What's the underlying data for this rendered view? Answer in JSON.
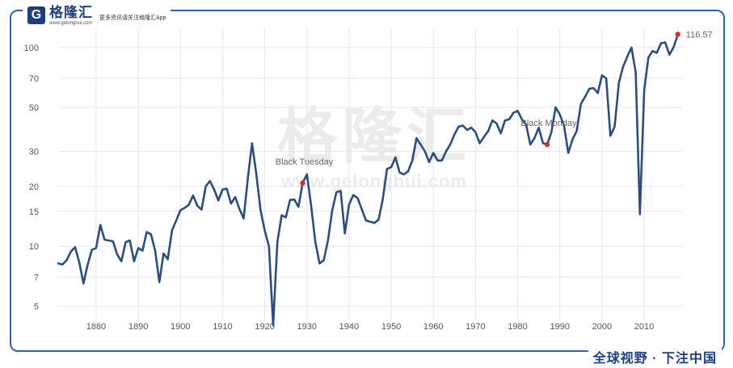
{
  "brand": {
    "logo_letter": "G",
    "name": "格隆汇",
    "domain": "www.gelonghui.com",
    "tagline": "更多资讯请关注格隆汇App"
  },
  "slogan": "全球视野 · 下注中国",
  "watermark": {
    "text": "格隆汇",
    "url": "www.gelonghui.com"
  },
  "chart_data": {
    "type": "line",
    "title": "",
    "xlabel": "",
    "ylabel": "",
    "yscale": "log",
    "xlim": [
      1871,
      2019
    ],
    "ylim": [
      4.2,
      125
    ],
    "xticks": [
      1880,
      1890,
      1900,
      1910,
      1920,
      1930,
      1940,
      1950,
      1960,
      1970,
      1980,
      1990,
      2000,
      2010
    ],
    "yticks": [
      5,
      7,
      10,
      15,
      20,
      30,
      50,
      70,
      100
    ],
    "grid": true,
    "line_color": "#2e4d7b",
    "marker_color": "#d32f2f",
    "series": [
      {
        "x": [
          1871,
          1872,
          1873,
          1874,
          1875,
          1876,
          1877,
          1878,
          1879,
          1880,
          1881,
          1882,
          1883,
          1884,
          1885,
          1886,
          1887,
          1888,
          1889,
          1890,
          1891,
          1892,
          1893,
          1894,
          1895,
          1896,
          1897,
          1898,
          1899,
          1900,
          1901,
          1902,
          1903,
          1904,
          1905,
          1906,
          1907,
          1908,
          1909,
          1910,
          1911,
          1912,
          1913,
          1914,
          1915,
          1916,
          1917,
          1918,
          1919,
          1920,
          1921,
          1922,
          1923,
          1924,
          1925,
          1926,
          1927,
          1928,
          1929,
          1930,
          1931,
          1932,
          1933,
          1934,
          1935,
          1936,
          1937,
          1938,
          1939,
          1940,
          1941,
          1942,
          1943,
          1944,
          1945,
          1946,
          1947,
          1948,
          1949,
          1950,
          1951,
          1952,
          1953,
          1954,
          1955,
          1956,
          1957,
          1958,
          1959,
          1960,
          1961,
          1962,
          1963,
          1964,
          1965,
          1966,
          1967,
          1968,
          1969,
          1970,
          1971,
          1972,
          1973,
          1974,
          1975,
          1976,
          1977,
          1978,
          1979,
          1980,
          1981,
          1982,
          1983,
          1984,
          1985,
          1986,
          1987,
          1988,
          1989,
          1990,
          1991,
          1992,
          1993,
          1994,
          1995,
          1996,
          1997,
          1998,
          1999,
          2000,
          2001,
          2002,
          2003,
          2004,
          2005,
          2006,
          2007,
          2008,
          2009,
          2010,
          2011,
          2012,
          2013,
          2014,
          2015,
          2016,
          2017,
          2018
        ],
        "values": [
          8.2,
          8.1,
          8.5,
          9.4,
          9.9,
          8.3,
          6.5,
          8.1,
          9.6,
          9.8,
          12.8,
          10.8,
          10.7,
          10.6,
          9.1,
          8.4,
          10.5,
          10.7,
          8.4,
          9.8,
          9.5,
          11.8,
          11.5,
          9.5,
          6.6,
          9.2,
          8.6,
          12.0,
          13.5,
          15.2,
          15.6,
          16.2,
          18.0,
          16.0,
          15.3,
          20.0,
          21.3,
          19.3,
          17.0,
          19.3,
          19.5,
          16.4,
          17.7,
          15.4,
          13.8,
          22.0,
          33.0,
          23.0,
          15.2,
          12.0,
          10.0,
          4.0,
          10.5,
          14.3,
          14.0,
          17.1,
          17.2,
          15.8,
          20.8,
          23.0,
          16.0,
          10.5,
          8.2,
          8.5,
          10.7,
          15.2,
          18.7,
          19.0,
          11.6,
          16.2,
          18.1,
          17.5,
          15.4,
          13.5,
          13.3,
          13.1,
          13.6,
          17.2,
          24.5,
          25.0,
          28.0,
          23.5,
          23.0,
          23.8,
          27.0,
          35.0,
          32.5,
          30.0,
          26.5,
          29.5,
          27.0,
          27.0,
          30.0,
          32.5,
          36.5,
          40.0,
          40.5,
          38.5,
          39.5,
          37.5,
          33.0,
          35.5,
          38.0,
          43.0,
          41.5,
          37.0,
          43.0,
          43.5,
          47.0,
          48.0,
          43.5,
          41.0,
          32.5,
          35.0,
          39.5,
          33.0,
          32.5,
          37.5,
          50.0,
          46.0,
          40.5,
          29.5,
          34.5,
          38.0,
          52.0,
          56.5,
          62.0,
          62.5,
          59.0,
          72.5,
          70.0,
          36.0,
          40.0,
          66.5,
          80.0,
          90.0,
          100.0,
          75.0,
          14.5,
          61.0,
          89.0,
          96.0,
          94.0,
          105.0,
          106.0,
          92.0,
          100.5,
          116.57
        ]
      }
    ],
    "annotations": [
      {
        "label": "Black Tuesday",
        "x": 1929,
        "y": 20.8
      },
      {
        "label": "Black Monday",
        "x": 1987,
        "y": 32.5
      }
    ],
    "end_label": {
      "text": "116.57",
      "x": 2018,
      "y": 116.57
    }
  }
}
